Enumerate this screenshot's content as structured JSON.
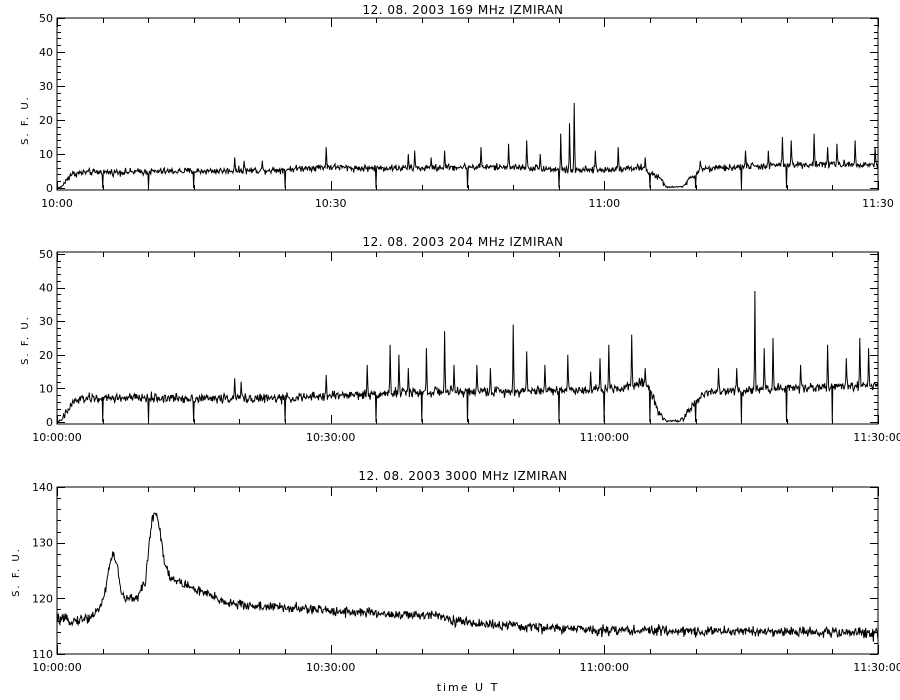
{
  "x_label": "time  U T",
  "chart_data": [
    {
      "type": "line",
      "title": "12.  08.  2003    169 MHz    IZMIRAN",
      "ylabel": "S. F. U.",
      "ylim": [
        0,
        50
      ],
      "yticks": [
        0,
        10,
        20,
        30,
        40,
        50
      ],
      "xlim_minutes": [
        0,
        90
      ],
      "xticks": [
        {
          "m": 0,
          "label": "10:00"
        },
        {
          "m": 30,
          "label": "10:30"
        },
        {
          "m": 60,
          "label": "11:00"
        },
        {
          "m": 90,
          "label": "11:30"
        }
      ],
      "grid": false,
      "series": [
        {
          "base": [
            [
              0,
              0
            ],
            [
              0.5,
              0.3
            ],
            [
              1.5,
              4
            ],
            [
              3,
              4.6
            ],
            [
              8,
              4.7
            ],
            [
              12,
              4.9
            ],
            [
              17,
              5.0
            ],
            [
              20,
              5.1
            ],
            [
              24,
              5.3
            ],
            [
              28,
              6.0
            ],
            [
              30,
              6.2
            ],
            [
              33,
              5.8
            ],
            [
              36,
              5.9
            ],
            [
              40,
              5.8
            ],
            [
              45,
              6.2
            ],
            [
              50,
              6.1
            ],
            [
              53,
              5.8
            ],
            [
              56,
              5.2
            ],
            [
              60,
              5.3
            ],
            [
              62,
              5.8
            ],
            [
              64,
              6.0
            ],
            [
              66,
              3.0
            ],
            [
              66.8,
              0.3
            ],
            [
              68.5,
              0.3
            ],
            [
              69.6,
              3.0
            ],
            [
              70.5,
              5.5
            ],
            [
              74,
              6.0
            ],
            [
              76,
              6.4
            ],
            [
              78,
              6.4
            ],
            [
              79,
              6.8
            ],
            [
              82,
              6.9
            ],
            [
              85,
              7.0
            ],
            [
              88,
              6.9
            ],
            [
              90,
              6.8
            ]
          ],
          "noise": 0.5,
          "spikes": [
            [
              19.5,
              9
            ],
            [
              20.5,
              8
            ],
            [
              22.5,
              8
            ],
            [
              29.5,
              12
            ],
            [
              38.5,
              10
            ],
            [
              39.2,
              11
            ],
            [
              41,
              9
            ],
            [
              42.5,
              11
            ],
            [
              46.5,
              12
            ],
            [
              49.5,
              13
            ],
            [
              51.5,
              14
            ],
            [
              53,
              10
            ],
            [
              55.2,
              16
            ],
            [
              56.2,
              19
            ],
            [
              56.7,
              25
            ],
            [
              59,
              11
            ],
            [
              61.5,
              12
            ],
            [
              64.5,
              9
            ],
            [
              70.5,
              8
            ],
            [
              75.5,
              11
            ],
            [
              78,
              11
            ],
            [
              79.5,
              15
            ],
            [
              80.5,
              14
            ],
            [
              83,
              16
            ],
            [
              84.5,
              12
            ],
            [
              85.5,
              13
            ],
            [
              87.5,
              14
            ],
            [
              89.7,
              12
            ]
          ],
          "dips": [
            [
              5,
              0
            ],
            [
              10,
              0
            ],
            [
              15,
              0
            ],
            [
              25,
              0
            ],
            [
              35,
              0
            ],
            [
              45,
              0
            ],
            [
              55,
              0
            ],
            [
              65,
              0
            ],
            [
              70,
              0
            ],
            [
              75,
              0
            ],
            [
              80,
              0
            ]
          ]
        }
      ]
    },
    {
      "type": "line",
      "title": "12.  08.  2003    204 MHz    IZMIRAN",
      "ylabel": "S. F. U.",
      "ylim": [
        0,
        50
      ],
      "yticks": [
        0,
        10,
        20,
        30,
        40,
        50
      ],
      "xlim_minutes": [
        0,
        90
      ],
      "xticks": [
        {
          "m": 0,
          "label": "10:00:00"
        },
        {
          "m": 30,
          "label": "10:30:00"
        },
        {
          "m": 60,
          "label": "11:00:00"
        },
        {
          "m": 90,
          "label": "11:30:00"
        }
      ],
      "grid": false,
      "series": [
        {
          "base": [
            [
              0,
              0
            ],
            [
              0.5,
              0.5
            ],
            [
              1.8,
              6
            ],
            [
              3,
              7.0
            ],
            [
              8,
              7.2
            ],
            [
              12,
              7.1
            ],
            [
              17,
              7.0
            ],
            [
              20,
              7.1
            ],
            [
              24,
              7.0
            ],
            [
              28,
              7.4
            ],
            [
              31,
              8.0
            ],
            [
              34,
              8.2
            ],
            [
              38,
              8.8
            ],
            [
              42,
              9.0
            ],
            [
              46,
              9.0
            ],
            [
              50,
              9.2
            ],
            [
              54,
              9.4
            ],
            [
              58,
              9.6
            ],
            [
              60,
              9.8
            ],
            [
              62,
              10.2
            ],
            [
              64,
              12.0
            ],
            [
              65,
              10.0
            ],
            [
              66,
              3.0
            ],
            [
              66.8,
              0.3
            ],
            [
              68.2,
              0.3
            ],
            [
              69.6,
              4.0
            ],
            [
              71,
              9.0
            ],
            [
              75,
              9.5
            ],
            [
              78,
              10.0
            ],
            [
              82,
              10.2
            ],
            [
              86,
              10.5
            ],
            [
              90,
              11.0
            ]
          ],
          "noise": 0.7,
          "spikes": [
            [
              19.5,
              13
            ],
            [
              20.2,
              12
            ],
            [
              29.5,
              14
            ],
            [
              34,
              17
            ],
            [
              36.5,
              23
            ],
            [
              37.5,
              20
            ],
            [
              38.5,
              16
            ],
            [
              40.5,
              22
            ],
            [
              42.5,
              27
            ],
            [
              43.5,
              17
            ],
            [
              46,
              17
            ],
            [
              47.5,
              16
            ],
            [
              50,
              29
            ],
            [
              51.5,
              21
            ],
            [
              53.5,
              17
            ],
            [
              56,
              20
            ],
            [
              58.5,
              15
            ],
            [
              59.5,
              19
            ],
            [
              60.5,
              23
            ],
            [
              63,
              26
            ],
            [
              64.5,
              16
            ],
            [
              72.5,
              16
            ],
            [
              74.5,
              16
            ],
            [
              76.5,
              39
            ],
            [
              77.5,
              22
            ],
            [
              78.5,
              25
            ],
            [
              81.5,
              17
            ],
            [
              84.5,
              23
            ],
            [
              86.5,
              19
            ],
            [
              88,
              25
            ],
            [
              89,
              22
            ]
          ],
          "dips": [
            [
              5,
              0
            ],
            [
              10,
              0
            ],
            [
              15,
              0
            ],
            [
              25,
              0
            ],
            [
              35,
              0
            ],
            [
              40,
              0
            ],
            [
              45,
              0
            ],
            [
              55,
              0
            ],
            [
              60,
              0
            ],
            [
              65,
              0
            ],
            [
              70,
              0
            ],
            [
              75,
              0
            ],
            [
              80,
              0
            ],
            [
              85,
              0
            ]
          ]
        }
      ]
    },
    {
      "type": "line",
      "title": "12.  08.  2003     3000 MHz     IZMIRAN",
      "ylabel": "S. F. U.",
      "ylim": [
        110,
        140
      ],
      "yticks": [
        110,
        120,
        130,
        140
      ],
      "xlim_minutes": [
        0,
        90
      ],
      "xticks": [
        {
          "m": 0,
          "label": "10:00:00"
        },
        {
          "m": 30,
          "label": "10:30:00"
        },
        {
          "m": 60,
          "label": "11:00:00"
        },
        {
          "m": 90,
          "label": "11:30:00"
        }
      ],
      "grid": false,
      "series": [
        {
          "base": [
            [
              0,
              116.2
            ],
            [
              2,
              116.0
            ],
            [
              3.5,
              116.5
            ],
            [
              4.5,
              117.8
            ],
            [
              5.2,
              120.5
            ],
            [
              5.8,
              126.5
            ],
            [
              6.2,
              128.0
            ],
            [
              6.6,
              126.0
            ],
            [
              7.0,
              121.0
            ],
            [
              7.6,
              119.8
            ],
            [
              8.2,
              120.0
            ],
            [
              9.0,
              120.5
            ],
            [
              9.7,
              123.0
            ],
            [
              10.1,
              130.0
            ],
            [
              10.5,
              134.5
            ],
            [
              10.8,
              136.0
            ],
            [
              11.2,
              133.0
            ],
            [
              11.8,
              126.5
            ],
            [
              12.5,
              123.5
            ],
            [
              14,
              122.5
            ],
            [
              16,
              121.0
            ],
            [
              18,
              119.6
            ],
            [
              20,
              118.8
            ],
            [
              25,
              118.3
            ],
            [
              30,
              117.8
            ],
            [
              35,
              117.3
            ],
            [
              38,
              117.0
            ],
            [
              40,
              116.8
            ],
            [
              41.5,
              117.4
            ],
            [
              43,
              116.2
            ],
            [
              45,
              115.6
            ],
            [
              50,
              115.0
            ],
            [
              55,
              114.6
            ],
            [
              60,
              114.3
            ],
            [
              65,
              114.2
            ],
            [
              70,
              114.1
            ],
            [
              75,
              114.1
            ],
            [
              80,
              114.0
            ],
            [
              85,
              113.9
            ],
            [
              90,
              113.8
            ]
          ],
          "noise": 0.45,
          "spikes": [],
          "dips": [
            [
              89.5,
              112.2
            ]
          ]
        }
      ]
    }
  ]
}
